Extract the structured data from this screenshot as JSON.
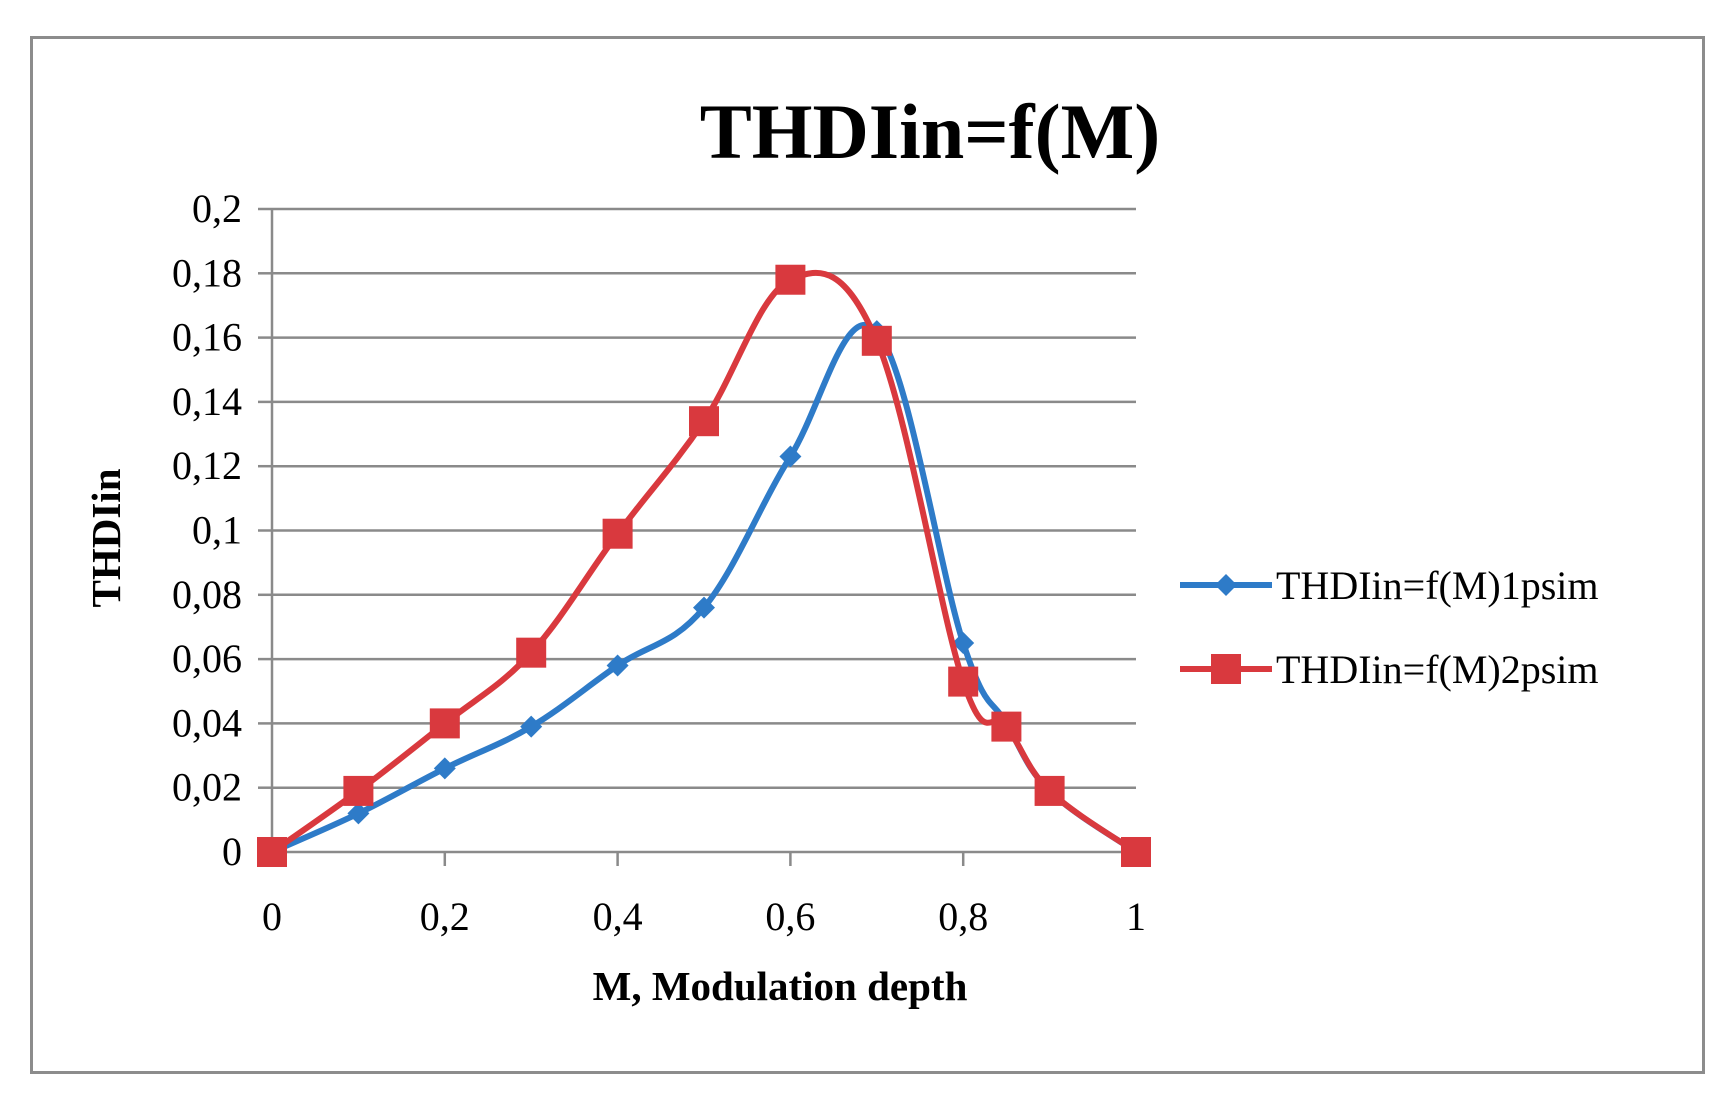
{
  "chart_data": {
    "type": "line",
    "title": "THDIin=f(M)",
    "xlabel": "M, Modulation depth",
    "ylabel": "THDIin",
    "xlim": [
      0,
      1
    ],
    "ylim": [
      0,
      0.2
    ],
    "x_ticks": [
      "0",
      "0,2",
      "0,4",
      "0,6",
      "0,8",
      "1"
    ],
    "y_ticks": [
      "0",
      "0,02",
      "0,04",
      "0,06",
      "0,08",
      "0,1",
      "0,12",
      "0,14",
      "0,16",
      "0,18",
      "0,2"
    ],
    "x_tick_values": [
      0,
      0.2,
      0.4,
      0.6,
      0.8,
      1
    ],
    "y_tick_values": [
      0,
      0.02,
      0.04,
      0.06,
      0.08,
      0.1,
      0.12,
      0.14,
      0.16,
      0.18,
      0.2
    ],
    "grid": "horizontal",
    "legend_position": "right",
    "series": [
      {
        "name": "THDIin=f(M)1psim",
        "color": "#2e7bc8",
        "marker": "diamond",
        "x": [
          0,
          0.1,
          0.2,
          0.3,
          0.4,
          0.5,
          0.6,
          0.7,
          0.8,
          0.85,
          0.9,
          1
        ],
        "values": [
          0,
          0.012,
          0.026,
          0.039,
          0.058,
          0.076,
          0.123,
          0.162,
          0.065,
          0.04,
          0.019,
          0
        ]
      },
      {
        "name": "THDIin=f(M)2psim",
        "color": "#d9393e",
        "marker": "square",
        "x": [
          0,
          0.1,
          0.2,
          0.3,
          0.4,
          0.5,
          0.6,
          0.7,
          0.8,
          0.85,
          0.9,
          1
        ],
        "values": [
          0,
          0.019,
          0.04,
          0.062,
          0.099,
          0.134,
          0.178,
          0.159,
          0.053,
          0.039,
          0.019,
          0
        ]
      }
    ]
  }
}
